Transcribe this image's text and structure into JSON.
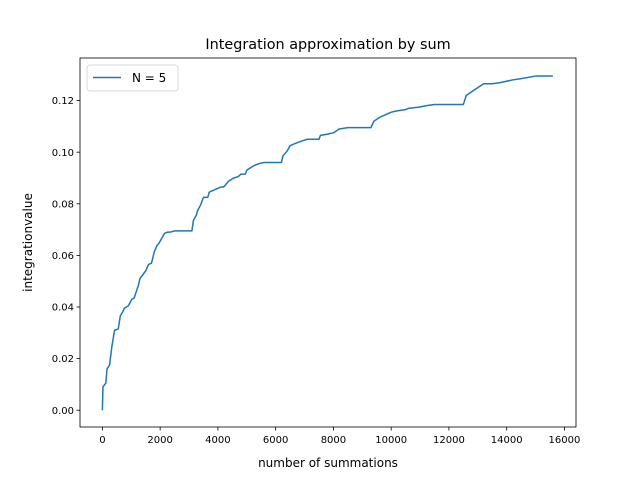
{
  "chart_data": {
    "type": "line",
    "title": "Integration approximation by sum",
    "xlabel": "number of summations",
    "ylabel": "integrationvalue",
    "xlim": [
      -775,
      16400
    ],
    "ylim": [
      -0.0065,
      0.1365
    ],
    "xticks": [
      0,
      2000,
      4000,
      6000,
      8000,
      10000,
      12000,
      14000,
      16000
    ],
    "xtick_labels": [
      "0",
      "2000",
      "4000",
      "6000",
      "8000",
      "10000",
      "12000",
      "14000",
      "16000"
    ],
    "yticks": [
      0.0,
      0.02,
      0.04,
      0.06,
      0.08,
      0.1,
      0.12
    ],
    "ytick_labels": [
      "0.00",
      "0.02",
      "0.04",
      "0.06",
      "0.08",
      "0.10",
      "0.12"
    ],
    "grid": false,
    "legend": {
      "position": "top-left"
    },
    "series": [
      {
        "name": "N = 5",
        "color": "#1f77b4",
        "x": [
          0,
          20,
          50,
          120,
          160,
          250,
          320,
          420,
          550,
          620,
          700,
          760,
          900,
          1020,
          1100,
          1250,
          1300,
          1400,
          1500,
          1600,
          1700,
          1800,
          1900,
          1950,
          2050,
          2150,
          2250,
          2350,
          2500,
          3100,
          3150,
          3250,
          3300,
          3400,
          3500,
          3650,
          3700,
          3900,
          4100,
          4200,
          4350,
          4400,
          4550,
          4700,
          4800,
          4950,
          5000,
          5200,
          5400,
          5600,
          6200,
          6250,
          6400,
          6500,
          6700,
          6950,
          7100,
          7500,
          7550,
          7800,
          8000,
          8200,
          8500,
          8800,
          9300,
          9400,
          9600,
          9800,
          10000,
          10200,
          10500,
          10600,
          11000,
          11200,
          11500,
          12500,
          12600,
          12800,
          13000,
          13200,
          13500,
          13800,
          14200,
          14500,
          15000,
          15600
        ],
        "y": [
          0.0,
          0.009,
          0.0095,
          0.0105,
          0.016,
          0.0175,
          0.024,
          0.031,
          0.0315,
          0.0365,
          0.038,
          0.0395,
          0.0405,
          0.043,
          0.0435,
          0.0485,
          0.051,
          0.0525,
          0.054,
          0.0565,
          0.057,
          0.0615,
          0.064,
          0.0645,
          0.0665,
          0.0685,
          0.069,
          0.069,
          0.0695,
          0.0695,
          0.0735,
          0.0755,
          0.0775,
          0.0795,
          0.0825,
          0.0825,
          0.0845,
          0.0855,
          0.0865,
          0.0865,
          0.0885,
          0.089,
          0.09,
          0.0905,
          0.0915,
          0.0915,
          0.093,
          0.0945,
          0.0955,
          0.096,
          0.096,
          0.0985,
          0.1005,
          0.1025,
          0.1035,
          0.1045,
          0.105,
          0.105,
          0.1065,
          0.107,
          0.1075,
          0.109,
          0.1095,
          0.1095,
          0.1095,
          0.112,
          0.1135,
          0.1145,
          0.1155,
          0.116,
          0.1165,
          0.117,
          0.1175,
          0.118,
          0.1185,
          0.1185,
          0.122,
          0.1235,
          0.125,
          0.1265,
          0.1265,
          0.127,
          0.128,
          0.1285,
          0.1295,
          0.1295
        ]
      }
    ]
  }
}
